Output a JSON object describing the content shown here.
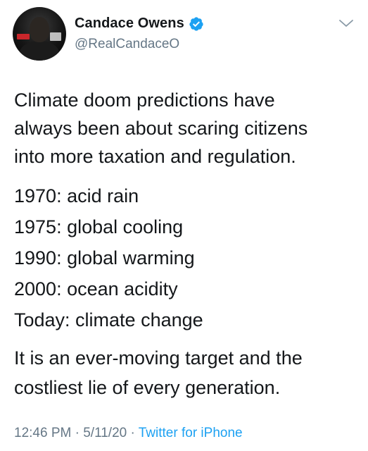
{
  "author": {
    "display_name": "Candace Owens",
    "handle": "@RealCandaceO",
    "verified_icon": "verified-badge-icon",
    "accent": "#1da1f2"
  },
  "menu": {
    "icon": "chevron-down-icon"
  },
  "tweet": {
    "intro_lines": [
      "Climate doom predictions have",
      "always been about scaring citizens",
      "into more taxation and regulation."
    ],
    "timeline": [
      "1970: acid rain",
      "1975: global cooling",
      "1990: global warming",
      "2000: ocean acidity",
      "Today: climate change"
    ],
    "closing_lines": [
      "It is an ever-moving target and the",
      "costliest lie of every generation."
    ]
  },
  "meta": {
    "time": "12:46 PM",
    "separator": "·",
    "date": "5/11/20",
    "source": "Twitter for iPhone"
  }
}
